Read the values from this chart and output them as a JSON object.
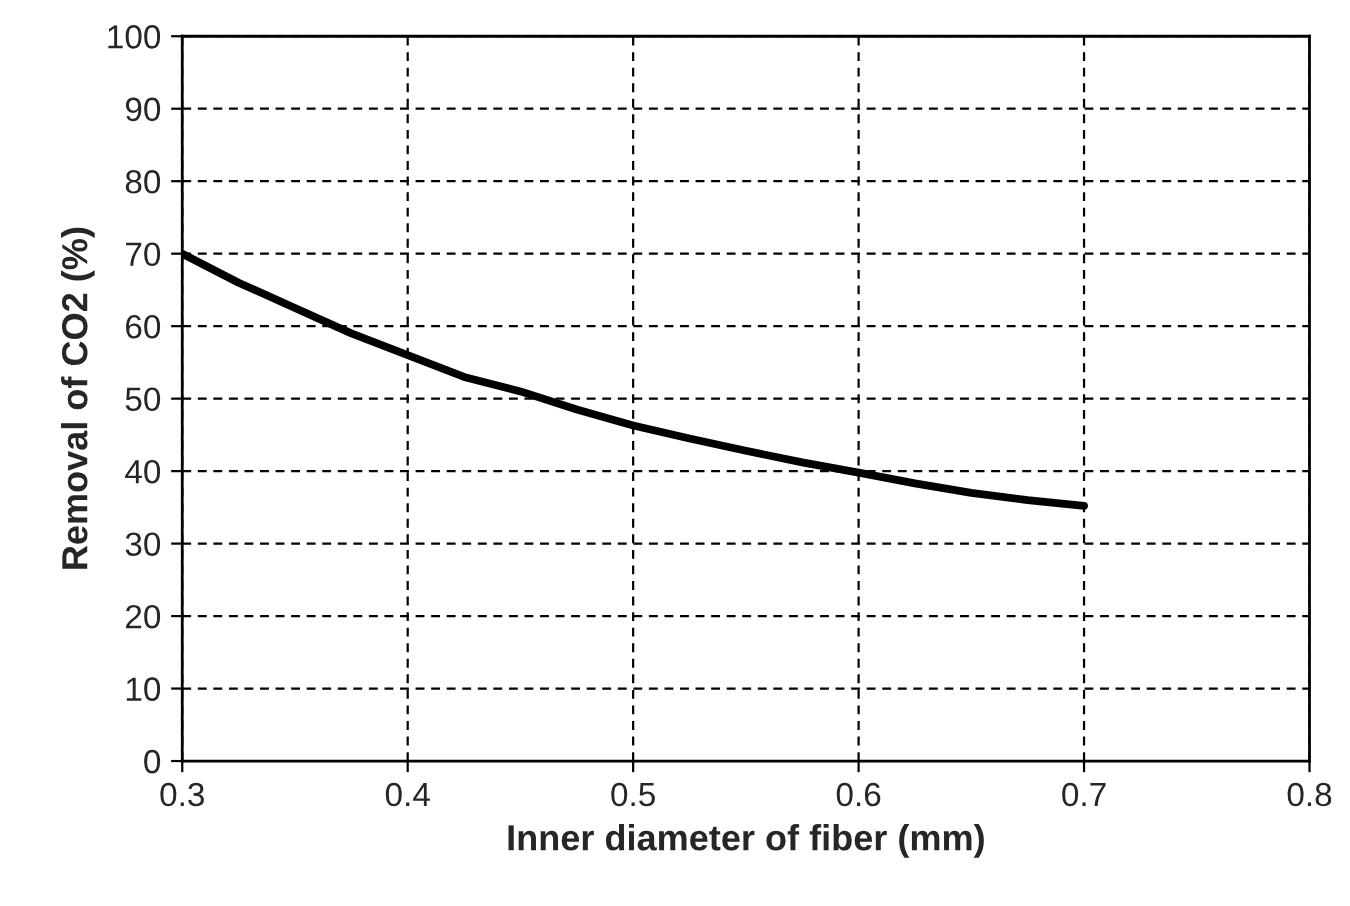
{
  "chart_data": {
    "type": "line",
    "xlabel": "Inner diameter of fiber (mm)",
    "ylabel": "Removal of CO2 (%)",
    "x": [
      0.3,
      0.325,
      0.35,
      0.375,
      0.4,
      0.425,
      0.45,
      0.475,
      0.5,
      0.525,
      0.55,
      0.575,
      0.6,
      0.625,
      0.65,
      0.675,
      0.7
    ],
    "series": [
      {
        "color": "#000000",
        "values": [
          70,
          66,
          62.5,
          59,
          56,
          53,
          51,
          48.5,
          46.3,
          44.5,
          42.8,
          41.2,
          39.8,
          38.3,
          37,
          36,
          35.2
        ]
      }
    ],
    "xlim": [
      0.3,
      0.8
    ],
    "xticks": [
      0.3,
      0.4,
      0.5,
      0.6,
      0.7,
      0.8
    ],
    "ylim": [
      0,
      100
    ],
    "yticks": [
      0,
      10,
      20,
      30,
      40,
      50,
      60,
      70,
      80,
      90,
      100
    ],
    "grid": true,
    "line_style": "solid",
    "marker": "none",
    "legend": false
  }
}
